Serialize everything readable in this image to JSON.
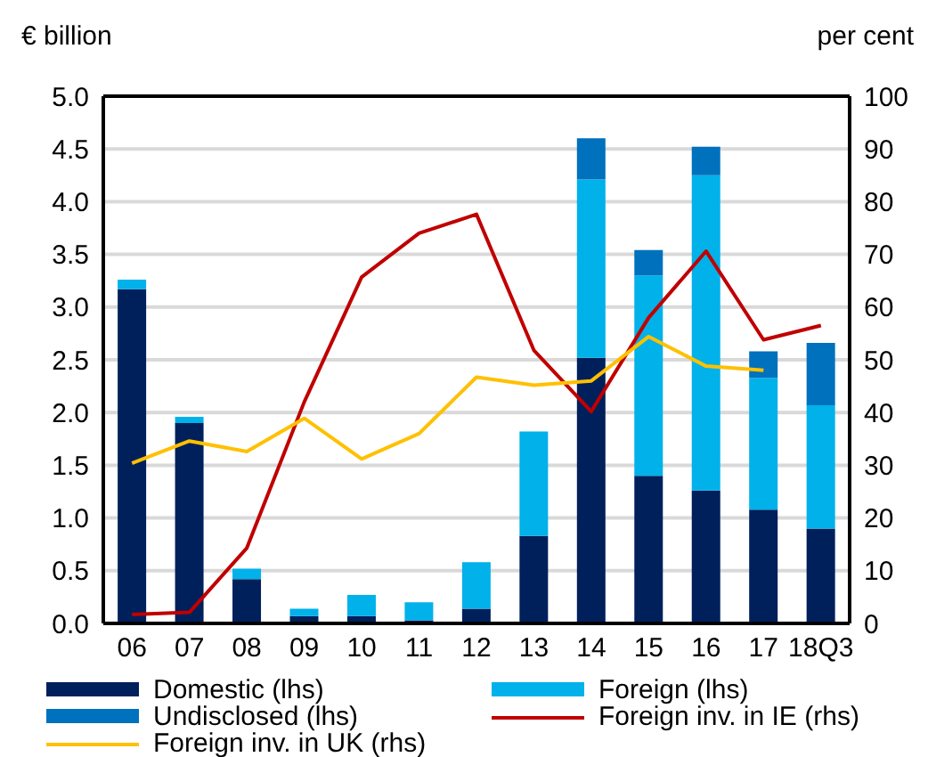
{
  "chart_data": {
    "type": "bar",
    "ylabel": "€ billion",
    "y2label": "per cent",
    "stacked": true,
    "grid": "y",
    "legend": "bottom",
    "categories": [
      "06",
      "07",
      "08",
      "09",
      "10",
      "11",
      "12",
      "13",
      "14",
      "15",
      "16",
      "17",
      "18Q3"
    ],
    "ylim": [
      0,
      5
    ],
    "yticks": [
      {
        "value": 0,
        "label": "0.0"
      },
      {
        "value": 0.5,
        "label": "0.5"
      },
      {
        "value": 1,
        "label": "1.0"
      },
      {
        "value": 1.5,
        "label": "1.5"
      },
      {
        "value": 2,
        "label": "2.0"
      },
      {
        "value": 2.5,
        "label": "2.5"
      },
      {
        "value": 3,
        "label": "3.0"
      },
      {
        "value": 3.5,
        "label": "3.5"
      },
      {
        "value": 4,
        "label": "4.0"
      },
      {
        "value": 4.5,
        "label": "4.5"
      },
      {
        "value": 5,
        "label": "5.0"
      }
    ],
    "y2lim": [
      0,
      100
    ],
    "y2ticks": [
      0,
      10,
      20,
      30,
      40,
      50,
      60,
      70,
      80,
      90,
      100
    ],
    "series": [
      {
        "name": "Domestic (lhs)",
        "color": "#00205b",
        "values": [
          3.17,
          1.9,
          0.42,
          0.07,
          0.07,
          0.03,
          0.14,
          0.83,
          2.52,
          1.4,
          1.26,
          1.08,
          0.9
        ]
      },
      {
        "name": "Foreign (lhs)",
        "color": "#00b1ea",
        "values": [
          0.09,
          0.06,
          0.1,
          0.07,
          0.2,
          0.17,
          0.44,
          0.99,
          1.69,
          1.9,
          2.99,
          1.25,
          1.17
        ]
      },
      {
        "name": "Undisclosed (lhs)",
        "color": "#0071bc",
        "values": [
          0,
          0,
          0,
          0,
          0,
          0,
          0,
          0,
          0.39,
          0.24,
          0.27,
          0.25,
          0.59
        ]
      },
      {
        "name": "Foreign inv. in IE (rhs)",
        "type": "line",
        "axis": "y2",
        "color": "#c00000",
        "values": [
          1.7,
          2.1,
          14.3,
          42,
          65.7,
          74,
          77.6,
          51.8,
          40.2,
          58,
          70.6,
          53.8,
          56.5
        ]
      },
      {
        "name": "Foreign inv. in UK (rhs)",
        "type": "line",
        "axis": "y2",
        "color": "#ffc000",
        "values": [
          30.4,
          34.6,
          32.6,
          38.9,
          31.2,
          36,
          46.7,
          45.2,
          46,
          54.4,
          48.8,
          48,
          null
        ]
      }
    ]
  }
}
